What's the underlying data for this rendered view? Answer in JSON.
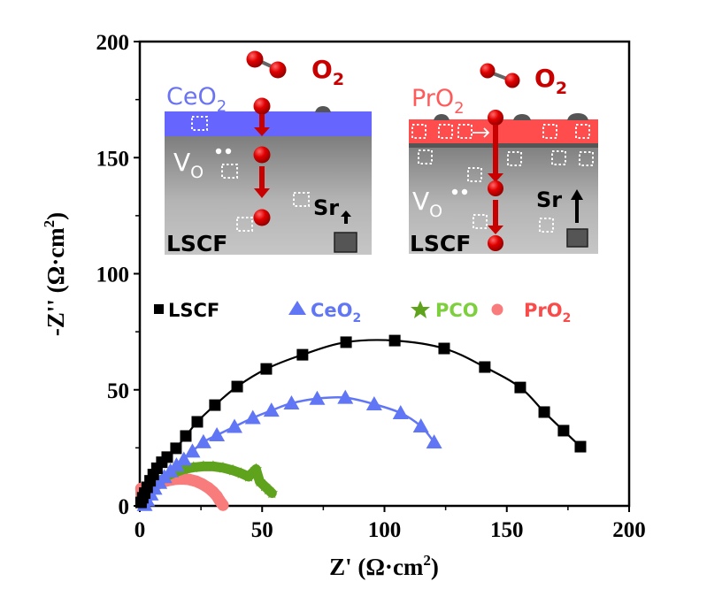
{
  "chart_data": {
    "type": "scatter",
    "title": "",
    "xlabel": "Z' (Ω·cm²)",
    "xlabel_main": "Z' (Ω·cm",
    "xlabel_sup": "2",
    "xlabel_close": ")",
    "ylabel": "-Z'' (Ω·cm²)",
    "ylabel_main": "-Z'' (Ω·cm",
    "ylabel_sup": "2",
    "ylabel_close": ")",
    "xlim": [
      0,
      200
    ],
    "ylim": [
      0,
      200
    ],
    "xticks": [
      0,
      50,
      100,
      150,
      200
    ],
    "yticks": [
      0,
      50,
      100,
      150,
      200
    ],
    "minor_xticks": [
      25,
      75,
      125,
      175
    ],
    "minor_yticks": [
      25,
      75,
      125,
      175
    ],
    "grid": false,
    "legend_position": "middle-left",
    "series": [
      {
        "name": "LSCF",
        "label_main": "LSCF",
        "label_sub": "",
        "marker": "square",
        "color": "#000000",
        "text_color": "#000000",
        "fit_line": true,
        "points": [
          [
            0.5,
            1.5
          ],
          [
            1.2,
            3.5
          ],
          [
            2.0,
            5.5
          ],
          [
            3.0,
            8.0
          ],
          [
            4.2,
            10.8
          ],
          [
            5.5,
            13.5
          ],
          [
            7.0,
            16.2
          ],
          [
            9.0,
            18.8
          ],
          [
            11.2,
            21.0
          ],
          [
            14.8,
            24.8
          ],
          [
            18.8,
            30.1
          ],
          [
            23.5,
            36.2
          ],
          [
            30.7,
            43.4
          ],
          [
            39.8,
            51.4
          ],
          [
            51.7,
            59.0
          ],
          [
            66.5,
            65.1
          ],
          [
            84.3,
            70.5
          ],
          [
            104.2,
            71.2
          ],
          [
            124.4,
            67.8
          ],
          [
            141.0,
            59.8
          ],
          [
            155.5,
            51.0
          ],
          [
            165.3,
            40.4
          ],
          [
            173.2,
            32.4
          ],
          [
            180.1,
            25.5
          ]
        ]
      },
      {
        "name": "CeO2",
        "label_main": "CeO",
        "label_sub": "2",
        "marker": "triangle",
        "color": "#6176f5",
        "text_color": "#6176f5",
        "fit_line": true,
        "points": [
          [
            2.0,
            0.5
          ],
          [
            3.0,
            2.5
          ],
          [
            4.5,
            5.0
          ],
          [
            6.0,
            7.5
          ],
          [
            8.0,
            10.0
          ],
          [
            10.0,
            12.5
          ],
          [
            12.5,
            15.0
          ],
          [
            15.0,
            17.5
          ],
          [
            18.0,
            20.0
          ],
          [
            21.5,
            23.5
          ],
          [
            26.0,
            27.5
          ],
          [
            31.5,
            30.5
          ],
          [
            38.7,
            34.1
          ],
          [
            46.2,
            37.9
          ],
          [
            53.8,
            41.1
          ],
          [
            62.0,
            44.2
          ],
          [
            72.5,
            46.2
          ],
          [
            84.0,
            46.6
          ],
          [
            95.8,
            43.8
          ],
          [
            106.6,
            40.0
          ],
          [
            114.9,
            34.3
          ],
          [
            120.3,
            27.4
          ]
        ]
      },
      {
        "name": "PCO",
        "label_main": "PCO",
        "label_sub": "",
        "marker": "star",
        "color": "#5fa31c",
        "text_color": "#7dcf3e",
        "fit_line": false,
        "points": [
          [
            1.0,
            1.0
          ],
          [
            2.0,
            3.0
          ],
          [
            3.5,
            5.5
          ],
          [
            5.5,
            8.0
          ],
          [
            8.0,
            10.5
          ],
          [
            11.0,
            12.8
          ],
          [
            14.5,
            14.5
          ],
          [
            18.0,
            15.8
          ],
          [
            22.0,
            16.6
          ],
          [
            26.0,
            17.0
          ],
          [
            30.0,
            17.0
          ],
          [
            34.0,
            16.4
          ],
          [
            38.0,
            15.3
          ],
          [
            41.5,
            14.0
          ],
          [
            44.5,
            12.6
          ],
          [
            47.5,
            15.8
          ],
          [
            49.0,
            10.5
          ],
          [
            51.0,
            8.5
          ],
          [
            52.5,
            7.0
          ],
          [
            54.0,
            5.5
          ]
        ]
      },
      {
        "name": "PrO2",
        "label_main": "PrO",
        "label_sub": "2",
        "marker": "circle",
        "color": "#f87c7c",
        "text_color": "#fa4b4b",
        "fit_line": false,
        "points": [
          [
            0.5,
            7.5
          ],
          [
            0.6,
            5.0
          ],
          [
            1.0,
            3.0
          ],
          [
            2.0,
            4.5
          ],
          [
            3.5,
            6.5
          ],
          [
            5.5,
            8.3
          ],
          [
            8.0,
            9.8
          ],
          [
            11.0,
            10.8
          ],
          [
            14.0,
            11.4
          ],
          [
            17.0,
            11.6
          ],
          [
            20.0,
            11.4
          ],
          [
            23.0,
            10.6
          ],
          [
            25.5,
            9.4
          ],
          [
            28.0,
            7.8
          ],
          [
            30.0,
            6.0
          ],
          [
            31.5,
            4.2
          ],
          [
            32.5,
            2.5
          ],
          [
            33.5,
            1.0
          ],
          [
            34.0,
            0.3
          ]
        ]
      }
    ]
  },
  "insets": [
    {
      "name": "ceo2-inset",
      "layer_label": "CeO",
      "layer_label_sub": "2",
      "layer_color": "#6666ff",
      "layer_label_color": "#6a74f2",
      "gas_label": "O",
      "gas_label_sub": "2",
      "gas_color": "#c80000",
      "vacancy_label": "V",
      "vacancy_label_sub": "O",
      "substrate_label": "LSCF",
      "sr_label": "Sr"
    },
    {
      "name": "pro2-inset",
      "layer_label": "PrO",
      "layer_label_sub": "2",
      "layer_color": "#ff4d4d",
      "layer_label_color": "#ff5a5a",
      "gas_label": "O",
      "gas_label_sub": "2",
      "gas_color": "#c80000",
      "vacancy_label": "V",
      "vacancy_label_sub": "O",
      "substrate_label": "LSCF",
      "sr_label": "Sr"
    }
  ]
}
